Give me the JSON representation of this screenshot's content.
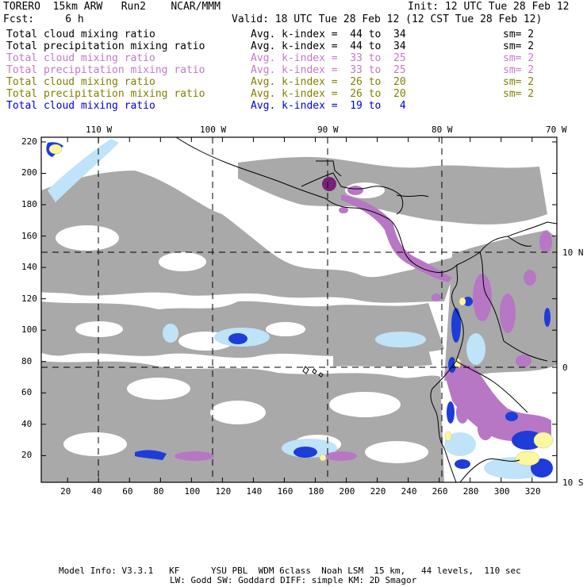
{
  "header": {
    "line1_left": "TORERO  15km ARW   Run2    NCAR/MMM",
    "line1_right": "Init: 12 UTC Tue 28 Feb 12",
    "fcst_label": "Fcst:     6 h",
    "valid": "Valid: 18 UTC Tue 28 Feb 12 (12 CST Tue 28 Feb 12)"
  },
  "legend": [
    {
      "field": "Total cloud mixing ratio",
      "kindex": "Avg. k-index =  44 to  34",
      "sm": "sm= 2",
      "color": "#000000"
    },
    {
      "field": "Total precipitation mixing ratio",
      "kindex": "Avg. k-index =  44 to  34",
      "sm": "sm= 2",
      "color": "#000000"
    },
    {
      "field": "Total cloud mixing ratio",
      "kindex": "Avg. k-index =  33 to  25",
      "sm": "sm= 2",
      "color": "#c27ac8"
    },
    {
      "field": "Total precipitation mixing ratio",
      "kindex": "Avg. k-index =  33 to  25",
      "sm": "sm= 2",
      "color": "#c27ac8"
    },
    {
      "field": "Total cloud mixing ratio",
      "kindex": "Avg. k-index =  26 to  20",
      "sm": "sm= 2",
      "color": "#808000"
    },
    {
      "field": "Total precipitation mixing ratio",
      "kindex": "Avg. k-index =  26 to  20",
      "sm": "sm= 2",
      "color": "#808000"
    },
    {
      "field": "Total cloud mixing ratio",
      "kindex": "Avg. k-index =  19 to   4",
      "sm": "",
      "color": "#0000e0"
    }
  ],
  "map": {
    "lon_labels": [
      "110 W",
      "100 W",
      "90 W",
      "80 W",
      "70 W"
    ],
    "lat_labels": [
      "10 N",
      "0",
      "10 S"
    ],
    "y_ticks": [
      "220",
      "200",
      "180",
      "160",
      "140",
      "120",
      "100",
      "80",
      "60",
      "40",
      "20"
    ],
    "x_ticks": [
      "20",
      "40",
      "60",
      "80",
      "100",
      "120",
      "140",
      "160",
      "180",
      "200",
      "220",
      "240",
      "260",
      "280",
      "300",
      "320"
    ],
    "colors": {
      "cloud_gray": "#a9a9a9",
      "light_blue": "#bfe3f8",
      "blue": "#1e3cd8",
      "purple": "#b777c4",
      "dark_purple": "#7a1f7a",
      "yellow": "#fbf7a0",
      "coast": "#000000"
    }
  },
  "footer": {
    "line1": "Model Info: V3.3.1   KF      YSU PBL  WDM 6class  Noah LSM  15 km,   44 levels,  110 sec",
    "line2": "LW: Godd SW: Goddard DIFF: simple KM: 2D Smagor"
  }
}
